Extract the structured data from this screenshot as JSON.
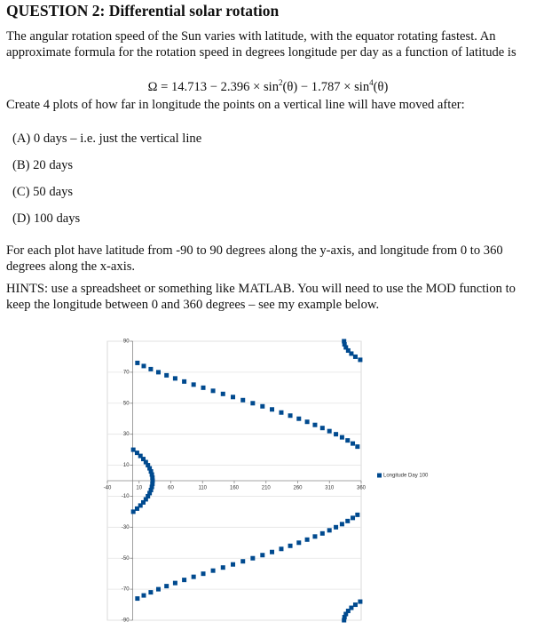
{
  "document": {
    "title": "QUESTION 2: Differential solar rotation",
    "intro": "The angular rotation speed of the Sun varies with latitude, with the equator rotating fastest. An approximate formula for the rotation speed in degrees longitude per day as a function of latitude is",
    "formula": {
      "part1": "Ω = 14.713 − 2.396 × sin",
      "exp1": "2",
      "part2": "(θ) − 1.787 × sin",
      "exp2": "4",
      "part3": "(θ)"
    },
    "task": "Create 4 plots of how far in longitude the points on a vertical line will have moved after:",
    "items": [
      "(A) 0 days – i.e. just the vertical line",
      "(B) 20 days",
      "(C) 50 days",
      "(D) 100 days"
    ],
    "axes_note": "For each plot have latitude from -90 to 90 degrees along the y-axis, and longitude from 0 to 360 degrees along the x-axis.",
    "hints": "HINTS: use a spreadsheet or something like MATLAB. You will need to use the MOD function to keep the longitude between 0 and 360 degrees – see my example below."
  },
  "chart_data": {
    "type": "scatter",
    "legend": "right",
    "grid": true,
    "xlim": [
      -40,
      360
    ],
    "ylim": [
      -90,
      90
    ],
    "xticks": [
      -40,
      10,
      60,
      110,
      160,
      210,
      260,
      310,
      360
    ],
    "yticks": [
      -90,
      -70,
      -50,
      -30,
      -10,
      10,
      30,
      50,
      70,
      90
    ],
    "series": [
      {
        "name": "Longitude Day 100",
        "color": "#004a8f",
        "x": [
          333.0,
          333.73,
          335.9,
          339.5,
          344.5,
          350.84,
          358.47,
          7.33,
          17.33,
          28.38,
          40.39,
          53.26,
          66.87,
          81.13,
          95.9,
          111.08,
          126.55,
          142.21,
          157.93,
          173.61,
          189.16,
          204.47,
          219.47,
          234.07,
          248.2,
          261.8,
          274.81,
          287.19,
          298.9,
          309.93,
          320.23,
          329.81,
          338.66,
          346.77,
          354.16,
          0.83,
          6.79,
          12.06,
          16.66,
          20.61,
          23.91,
          26.59,
          28.66,
          30.13,
          31.01,
          31.3,
          31.01,
          30.13,
          28.66,
          26.59,
          23.91,
          20.61,
          16.66,
          12.06,
          6.79,
          0.83,
          354.16,
          346.77,
          338.66,
          329.81,
          320.23,
          309.93,
          298.9,
          287.19,
          274.81,
          261.8,
          248.2,
          234.07,
          219.47,
          204.47,
          189.16,
          173.61,
          157.93,
          142.21,
          126.55,
          111.08,
          95.9,
          81.13,
          66.87,
          53.26,
          40.39,
          28.38,
          17.33,
          7.33,
          358.47,
          350.84,
          344.5,
          339.5,
          335.9,
          333.73,
          333.0
        ],
        "values": [
          -90,
          -88,
          -86,
          -84,
          -82,
          -80,
          -78,
          -76,
          -74,
          -72,
          -70,
          -68,
          -66,
          -64,
          -62,
          -60,
          -58,
          -56,
          -54,
          -52,
          -50,
          -48,
          -46,
          -44,
          -42,
          -40,
          -38,
          -36,
          -34,
          -32,
          -30,
          -28,
          -26,
          -24,
          -22,
          -20,
          -18,
          -16,
          -14,
          -12,
          -10,
          -8,
          -6,
          -4,
          -2,
          0,
          2,
          4,
          6,
          8,
          10,
          12,
          14,
          16,
          18,
          20,
          22,
          24,
          26,
          28,
          30,
          32,
          34,
          36,
          38,
          40,
          42,
          44,
          46,
          48,
          50,
          52,
          54,
          56,
          58,
          60,
          62,
          64,
          66,
          68,
          70,
          72,
          74,
          76,
          78,
          80,
          82,
          84,
          86,
          88,
          90
        ]
      }
    ]
  }
}
